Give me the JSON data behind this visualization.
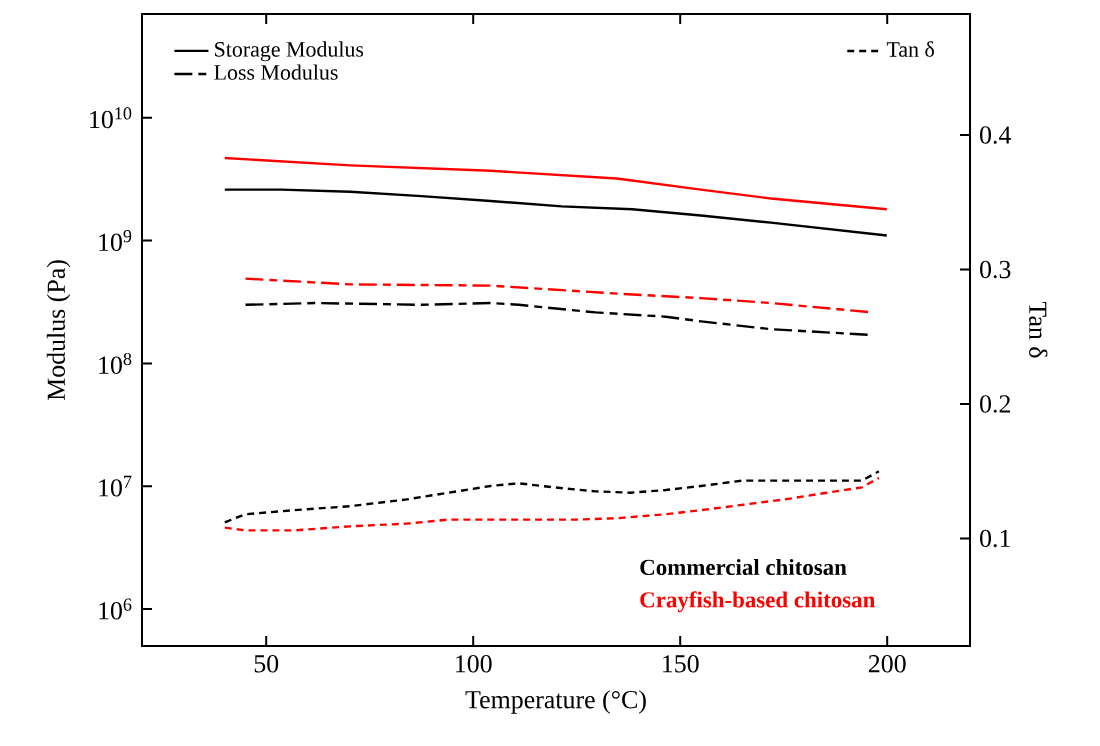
{
  "chart_data": {
    "type": "line",
    "xlabel": "Temperature (°C)",
    "ylabel": "Modulus (Pa)",
    "y2label": "Tan δ",
    "log": "y",
    "xlim": [
      20,
      220
    ],
    "xticks": [
      50,
      100,
      150,
      200
    ],
    "ylim": [
      500000,
      70000000000
    ],
    "yticks": [
      {
        "value": 1000000,
        "label": "10$^{6}$"
      },
      {
        "value": 10000000,
        "label": "10$^{7}$"
      },
      {
        "value": 100000000,
        "label": "10$^{8}$"
      },
      {
        "value": 1000000000,
        "label": "10$^{9}$"
      },
      {
        "value": 10000000000,
        "label": "10$^{10}$"
      }
    ],
    "y2lim": [
      0.02,
      0.49
    ],
    "y2ticks": [
      0.1,
      0.2,
      0.3,
      0.4
    ],
    "legend": "top",
    "series": [
      {
        "name": "Storage Modulus",
        "color": "#000000",
        "line_style": "solid",
        "x": [
          40,
          53.6,
          70.3,
          87.5,
          104.2,
          121.4,
          138.4,
          155,
          171.9,
          199.9
        ],
        "values": [
          2600000000,
          2600000000,
          2500000000,
          2300000000,
          2100000000,
          1900000000,
          1800000000,
          1600000000,
          1400000000,
          1100000000
        ]
      },
      {
        "name": "Loss Modulus",
        "color": "#000000",
        "line_style": "dashed",
        "x": [
          45,
          62,
          87.5,
          104.2,
          111,
          129.6,
          146.5,
          155,
          171.9,
          196.6
        ],
        "values": [
          300000000,
          310000000,
          300000000,
          310000000,
          300000000,
          260000000,
          240000000,
          220000000,
          190000000,
          170000000
        ]
      },
      {
        "name": "Tan δ",
        "color": "#000000",
        "line_style": "dashed",
        "axis": "y2",
        "x": [
          40,
          45,
          56.8,
          70.3,
          83.9,
          94,
          104.2,
          111,
          119.4,
          129.6,
          138,
          146.5,
          155,
          165,
          175.3,
          185.4,
          193.9,
          198
        ],
        "values": [
          0.112,
          0.118,
          0.121,
          0.124,
          0.129,
          0.134,
          0.139,
          0.141,
          0.138,
          0.135,
          0.134,
          0.136,
          0.139,
          0.143,
          0.143,
          0.143,
          0.143,
          0.15
        ]
      },
      {
        "color": "#ff0000",
        "line_style": "solid",
        "x": [
          40,
          70.3,
          104.2,
          134.7,
          155,
          171.9,
          199.9
        ],
        "values": [
          4700000000,
          4100000000,
          3700000000,
          3200000000,
          2600000000,
          2200000000,
          1800000000
        ]
      },
      {
        "color": "#ff0000",
        "line_style": "dashed",
        "x": [
          45,
          70.3,
          104.2,
          134.7,
          155,
          171.9,
          196.6
        ],
        "values": [
          490000000,
          440000000,
          430000000,
          370000000,
          340000000,
          310000000,
          260000000
        ]
      },
      {
        "color": "#ff0000",
        "line_style": "dashed",
        "axis": "y2",
        "x": [
          40,
          45,
          56.8,
          70.3,
          83.9,
          94,
          104.2,
          114.3,
          124.4,
          134.6,
          146.5,
          155,
          165,
          175.3,
          185.4,
          193.9,
          198
        ],
        "values": [
          0.108,
          0.106,
          0.106,
          0.109,
          0.111,
          0.114,
          0.114,
          0.114,
          0.114,
          0.115,
          0.118,
          0.121,
          0.125,
          0.129,
          0.134,
          0.138,
          0.145
        ]
      }
    ],
    "annotations": [
      "Commercial chitosan",
      "Crayfish-based chitosan"
    ]
  }
}
